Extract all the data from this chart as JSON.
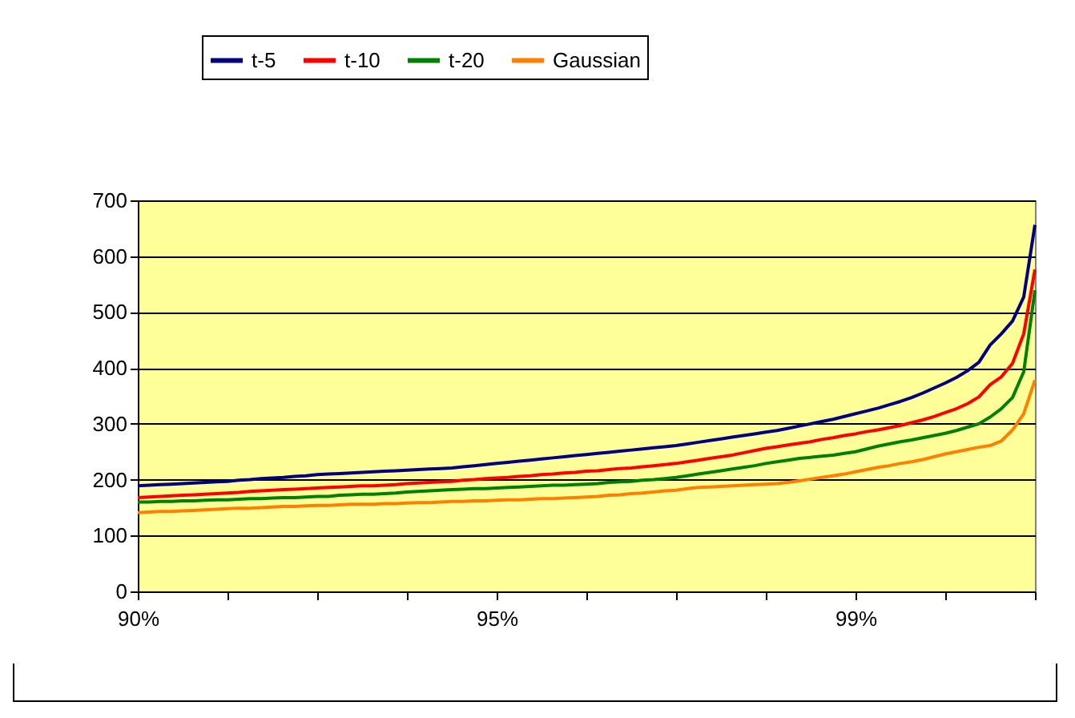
{
  "chart_data": {
    "type": "line",
    "categories": [
      "90%",
      null,
      null,
      null,
      null,
      null,
      null,
      null,
      null,
      null,
      null,
      null,
      null,
      null,
      null,
      null,
      null,
      null,
      null,
      null,
      null,
      null,
      null,
      null,
      null,
      null,
      null,
      null,
      null,
      null,
      null,
      null,
      "95%",
      null,
      null,
      null,
      null,
      null,
      null,
      null,
      null,
      null,
      null,
      null,
      null,
      null,
      null,
      null,
      null,
      null,
      null,
      null,
      null,
      null,
      null,
      null,
      null,
      null,
      null,
      null,
      null,
      null,
      null,
      null,
      "99%",
      null,
      null,
      null,
      null,
      null,
      null,
      null,
      null,
      null,
      null,
      null,
      null,
      null,
      null,
      null,
      null
    ],
    "series": [
      {
        "name": "t-5",
        "color": "#000080",
        "values": [
          189,
          190,
          191,
          192,
          193,
          194,
          195,
          196,
          197,
          199,
          200,
          202,
          203,
          204,
          206,
          207,
          209,
          210,
          211,
          212,
          213,
          214,
          215,
          216,
          217,
          218,
          219,
          220,
          221,
          223,
          225,
          227,
          229,
          231,
          233,
          235,
          237,
          239,
          241,
          243,
          245,
          247,
          249,
          251,
          253,
          255,
          257,
          259,
          261,
          264,
          267,
          270,
          273,
          276,
          279,
          282,
          285,
          288,
          292,
          296,
          300,
          304,
          308,
          313,
          318,
          323,
          328,
          334,
          340,
          347,
          355,
          364,
          373,
          383,
          395,
          410,
          441,
          461,
          484,
          527,
          656
        ]
      },
      {
        "name": "t-10",
        "color": "#ff0000",
        "values": [
          168,
          169,
          170,
          171,
          172,
          173,
          174,
          175,
          176,
          177,
          179,
          180,
          181,
          182,
          183,
          184,
          185,
          186,
          187,
          188,
          189,
          189,
          190,
          191,
          193,
          194,
          195,
          196,
          197,
          199,
          200,
          202,
          203,
          204,
          206,
          207,
          209,
          210,
          212,
          213,
          215,
          216,
          218,
          220,
          221,
          223,
          225,
          227,
          229,
          232,
          235,
          238,
          241,
          244,
          248,
          252,
          256,
          259,
          262,
          265,
          268,
          272,
          275,
          279,
          282,
          286,
          289,
          293,
          297,
          302,
          307,
          313,
          320,
          327,
          336,
          348,
          370,
          384,
          408,
          461,
          576
        ]
      },
      {
        "name": "t-20",
        "color": "#008000",
        "values": [
          160,
          160,
          161,
          161,
          162,
          162,
          163,
          164,
          164,
          165,
          166,
          166,
          167,
          168,
          168,
          169,
          170,
          170,
          172,
          173,
          174,
          174,
          175,
          176,
          178,
          179,
          180,
          181,
          182,
          183,
          184,
          184,
          185,
          186,
          187,
          188,
          189,
          190,
          190,
          191,
          192,
          193,
          195,
          196,
          197,
          199,
          200,
          202,
          204,
          207,
          210,
          213,
          216,
          219,
          222,
          225,
          229,
          232,
          235,
          238,
          240,
          242,
          244,
          247,
          250,
          255,
          260,
          264,
          268,
          271,
          275,
          279,
          283,
          288,
          294,
          300,
          312,
          327,
          347,
          393,
          539
        ]
      },
      {
        "name": "Gaussian",
        "color": "#ff8000",
        "values": [
          141,
          142,
          143,
          143,
          144,
          145,
          146,
          147,
          148,
          149,
          149,
          150,
          151,
          152,
          152,
          153,
          154,
          154,
          155,
          156,
          156,
          156,
          157,
          157,
          158,
          159,
          159,
          160,
          161,
          161,
          162,
          162,
          163,
          164,
          164,
          165,
          166,
          166,
          167,
          168,
          169,
          170,
          172,
          173,
          175,
          176,
          178,
          180,
          181,
          184,
          186,
          187,
          188,
          189,
          190,
          191,
          192,
          193,
          195,
          198,
          201,
          204,
          207,
          210,
          214,
          218,
          222,
          225,
          229,
          232,
          236,
          241,
          246,
          250,
          254,
          258,
          261,
          269,
          289,
          318,
          378
        ]
      }
    ],
    "ylim": [
      0,
      700
    ],
    "yticks": [
      0,
      100,
      200,
      300,
      400,
      500,
      600,
      700
    ],
    "grid": "y",
    "legend": "top",
    "marker": "none",
    "line_style": "solid"
  }
}
